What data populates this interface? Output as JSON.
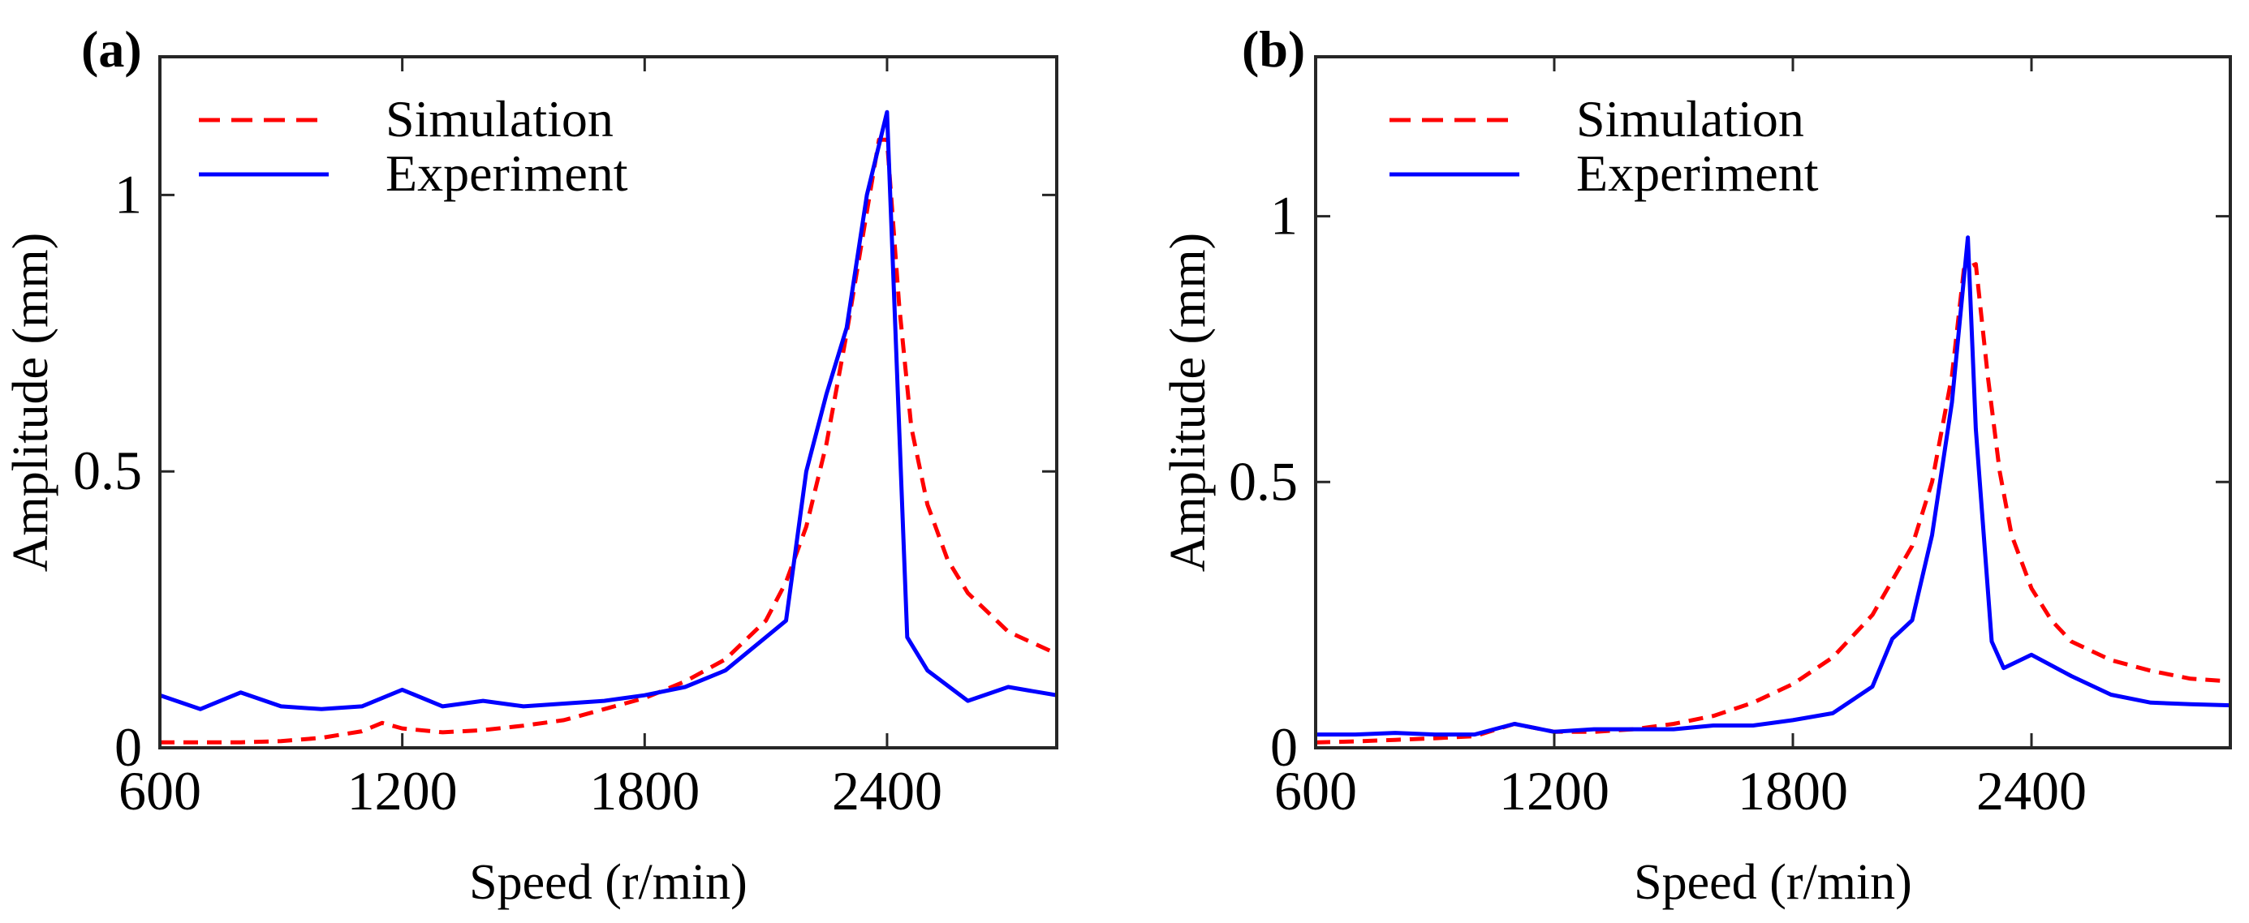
{
  "chart_data": [
    {
      "panel_label": "(a)",
      "type": "line",
      "xlabel": "Speed (r/min)",
      "ylabel": "Amplitude (mm)",
      "xlim": [
        600,
        2820
      ],
      "ylim": [
        0,
        1.25
      ],
      "xticks": [
        600,
        1200,
        1800,
        2400
      ],
      "xtick_labels": [
        "600",
        "1200",
        "1800",
        "2400"
      ],
      "yticks": [
        0,
        0.5,
        1
      ],
      "ytick_labels": [
        "0",
        "0.5",
        "1"
      ],
      "grid": false,
      "legend_position": "top-left",
      "series": [
        {
          "name": "Simulation",
          "style": "dashed",
          "color": "#ff0000",
          "x": [
            600,
            700,
            800,
            900,
            1000,
            1100,
            1150,
            1200,
            1300,
            1400,
            1500,
            1600,
            1700,
            1800,
            1900,
            2000,
            2100,
            2150,
            2200,
            2250,
            2300,
            2350,
            2380,
            2400,
            2430,
            2460,
            2500,
            2550,
            2600,
            2700,
            2820
          ],
          "y": [
            0.01,
            0.01,
            0.01,
            0.012,
            0.018,
            0.03,
            0.045,
            0.035,
            0.028,
            0.032,
            0.04,
            0.05,
            0.07,
            0.09,
            0.12,
            0.16,
            0.23,
            0.3,
            0.4,
            0.55,
            0.75,
            0.97,
            1.1,
            1.1,
            0.8,
            0.58,
            0.44,
            0.34,
            0.28,
            0.21,
            0.17
          ]
        },
        {
          "name": "Experiment",
          "style": "solid",
          "color": "#0000ff",
          "x": [
            600,
            700,
            800,
            900,
            1000,
            1100,
            1200,
            1300,
            1400,
            1500,
            1600,
            1700,
            1800,
            1900,
            2000,
            2100,
            2150,
            2200,
            2250,
            2300,
            2350,
            2400,
            2450,
            2500,
            2600,
            2700,
            2820
          ],
          "y": [
            0.095,
            0.07,
            0.1,
            0.075,
            0.07,
            0.075,
            0.105,
            0.075,
            0.085,
            0.075,
            0.08,
            0.085,
            0.095,
            0.11,
            0.14,
            0.2,
            0.23,
            0.5,
            0.64,
            0.76,
            1.0,
            1.15,
            0.2,
            0.14,
            0.085,
            0.11,
            0.095
          ]
        }
      ]
    },
    {
      "panel_label": "(b)",
      "type": "line",
      "xlabel": "Speed (r/min)",
      "ylabel": "Amplitude (mm)",
      "xlim": [
        600,
        2900
      ],
      "ylim": [
        0,
        1.3
      ],
      "xticks": [
        600,
        1200,
        1800,
        2400
      ],
      "xtick_labels": [
        "600",
        "1200",
        "1800",
        "2400"
      ],
      "yticks": [
        0,
        0.5,
        1
      ],
      "ytick_labels": [
        "0",
        "0.5",
        "1"
      ],
      "grid": false,
      "legend_position": "top-left",
      "series": [
        {
          "name": "Simulation",
          "style": "dashed",
          "color": "#ff0000",
          "x": [
            600,
            700,
            800,
            900,
            1000,
            1100,
            1200,
            1300,
            1400,
            1500,
            1600,
            1700,
            1800,
            1900,
            2000,
            2100,
            2150,
            2200,
            2230,
            2260,
            2290,
            2320,
            2350,
            2400,
            2450,
            2500,
            2600,
            2700,
            2800,
            2900
          ],
          "y": [
            0.01,
            0.012,
            0.015,
            0.018,
            0.022,
            0.045,
            0.03,
            0.03,
            0.035,
            0.045,
            0.06,
            0.085,
            0.12,
            0.17,
            0.25,
            0.38,
            0.5,
            0.7,
            0.9,
            0.91,
            0.7,
            0.52,
            0.4,
            0.3,
            0.24,
            0.2,
            0.165,
            0.145,
            0.13,
            0.125
          ]
        },
        {
          "name": "Experiment",
          "style": "solid",
          "color": "#0000ff",
          "x": [
            600,
            700,
            800,
            900,
            1000,
            1100,
            1200,
            1300,
            1400,
            1500,
            1600,
            1700,
            1800,
            1900,
            2000,
            2050,
            2100,
            2150,
            2200,
            2240,
            2260,
            2300,
            2330,
            2400,
            2500,
            2600,
            2700,
            2800,
            2900
          ],
          "y": [
            0.025,
            0.025,
            0.028,
            0.025,
            0.025,
            0.045,
            0.03,
            0.035,
            0.035,
            0.035,
            0.042,
            0.042,
            0.052,
            0.065,
            0.115,
            0.205,
            0.24,
            0.4,
            0.65,
            0.96,
            0.6,
            0.2,
            0.15,
            0.175,
            0.135,
            0.1,
            0.085,
            0.082,
            0.08
          ]
        }
      ]
    }
  ]
}
